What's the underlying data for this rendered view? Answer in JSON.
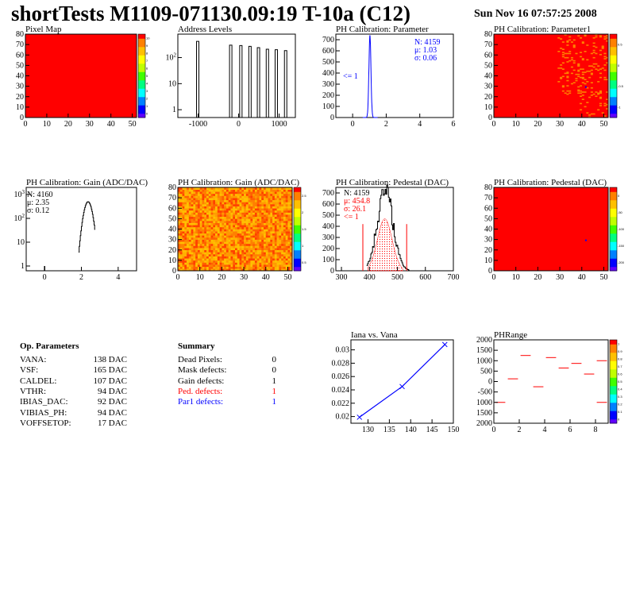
{
  "header": {
    "title": "shortTests M1109-071130.09:19 T-10a (C12)",
    "date": "Sun Nov 16 07:57:25 2008"
  },
  "colors": {
    "red": "#ff0000",
    "blue": "#0000ff",
    "black": "#000000",
    "palette": [
      "#6000ff",
      "#0000ff",
      "#0080ff",
      "#00ffff",
      "#00ff80",
      "#40ff00",
      "#c0ff00",
      "#ffff00",
      "#ffc000",
      "#ff8000",
      "#ff0000"
    ]
  },
  "chart_data": [
    {
      "id": "pixel-map",
      "type": "heatmap",
      "title": "Pixel Map",
      "xlim": [
        0,
        52
      ],
      "ylim": [
        0,
        80
      ],
      "xticks": [
        "0",
        "10",
        "20",
        "30",
        "40",
        "50"
      ],
      "yticks": [
        "0",
        "10",
        "20",
        "30",
        "40",
        "50",
        "60",
        "70",
        "80"
      ],
      "fill": "uniform",
      "z_ticks": [
        "0",
        "1",
        "2",
        "3",
        "4",
        "5",
        "6",
        "7",
        "8",
        "9",
        "10"
      ]
    },
    {
      "id": "address-levels",
      "type": "bar",
      "title": "Address Levels",
      "xlim": [
        -1500,
        1400
      ],
      "ylog": true,
      "xticks": [
        "-1000",
        "0",
        "1000"
      ],
      "yticks": [
        "1",
        "10",
        "10^2"
      ],
      "peaks": [
        {
          "x": -1010,
          "count": 420
        },
        {
          "x": -195,
          "count": 300
        },
        {
          "x": 55,
          "count": 290
        },
        {
          "x": 280,
          "count": 270
        },
        {
          "x": 490,
          "count": 240
        },
        {
          "x": 710,
          "count": 210
        },
        {
          "x": 930,
          "count": 200
        },
        {
          "x": 1160,
          "count": 185
        }
      ]
    },
    {
      "id": "ph-param",
      "type": "line",
      "title": "PH Calibration: Parameter",
      "xlim": [
        -1,
        6
      ],
      "ylim": [
        0,
        750
      ],
      "xticks": [
        "0",
        "2",
        "4",
        "6"
      ],
      "yticks": [
        "0",
        "100",
        "200",
        "300",
        "400",
        "500",
        "600",
        "700"
      ],
      "stats": [
        "N: 4159",
        "μ: 1.03",
        "σ: 0.06"
      ],
      "annotation": "<= 1",
      "peak_center": 1.03,
      "peak_sigma": 0.06,
      "peak_height": 740
    },
    {
      "id": "ph-param1",
      "type": "heatmap",
      "title": "PH Calibration: Parameter1",
      "xlim": [
        0,
        52
      ],
      "ylim": [
        0,
        80
      ],
      "xticks": [
        "0",
        "10",
        "20",
        "30",
        "40",
        "50"
      ],
      "yticks": [
        "0",
        "10",
        "20",
        "30",
        "40",
        "50",
        "60",
        "70",
        "80"
      ],
      "z_ticks": [
        "-1",
        "-0.5",
        "0",
        "0.5"
      ]
    },
    {
      "id": "ph-gain-hist",
      "type": "line",
      "title": "PH Calibration: Gain (ADC/DAC)",
      "xlim": [
        -1,
        5
      ],
      "ylog": true,
      "xticks": [
        "0",
        "2",
        "4"
      ],
      "yticks": [
        "1",
        "10",
        "10^2",
        "10^3"
      ],
      "stats": [
        "N: 4160",
        "μ: 2.35",
        "σ: 0.12"
      ],
      "peak_center": 2.35,
      "peak_sigma": 0.12,
      "peak_height": 500
    },
    {
      "id": "ph-gain-map",
      "type": "heatmap",
      "title": "PH Calibration: Gain (ADC/DAC)",
      "xlim": [
        0,
        52
      ],
      "ylim": [
        0,
        80
      ],
      "xticks": [
        "0",
        "10",
        "20",
        "30",
        "40",
        "50"
      ],
      "yticks": [
        "0",
        "10",
        "20",
        "30",
        "40",
        "50",
        "60",
        "70",
        "80"
      ],
      "z_ticks": [
        "0.5",
        "1",
        "1.5",
        "2",
        "2.5"
      ]
    },
    {
      "id": "ph-pedestal-hist",
      "type": "line",
      "title": "PH Calibration: Pedestal (DAC)",
      "xlim": [
        280,
        700
      ],
      "ylim": [
        0,
        750
      ],
      "xticks": [
        "300",
        "400",
        "500",
        "600",
        "700"
      ],
      "yticks": [
        "0",
        "100",
        "200",
        "300",
        "400",
        "500",
        "600",
        "700"
      ],
      "stats": [
        "N: 4159",
        "μ: 454.8",
        "σ: 26.1",
        "<= 1"
      ],
      "peak_center": 454.8,
      "peak_sigma": 26.1,
      "peak_height": 720,
      "cuts": [
        376.5,
        533.1
      ]
    },
    {
      "id": "ph-pedestal-map",
      "type": "heatmap",
      "title": "PH Calibration: Pedestal (DAC)",
      "xlim": [
        0,
        52
      ],
      "ylim": [
        0,
        80
      ],
      "xticks": [
        "0",
        "10",
        "20",
        "30",
        "40",
        "50"
      ],
      "yticks": [
        "0",
        "10",
        "20",
        "30",
        "40",
        "50",
        "60",
        "70",
        "80"
      ],
      "z_ticks": [
        "-200",
        "-150",
        "-100",
        "-50",
        "0"
      ]
    },
    {
      "id": "iana-vana",
      "type": "line",
      "title": "Iana vs. Vana",
      "xlim": [
        126,
        150
      ],
      "ylim": [
        0.019,
        0.0315
      ],
      "xticks": [
        "130",
        "135",
        "140",
        "145",
        "150"
      ],
      "yticks": [
        "0.02",
        "0.022",
        "0.024",
        "0.026",
        "0.028",
        "0.03"
      ],
      "x": [
        128,
        138,
        148
      ],
      "y": [
        0.0199,
        0.0245,
        0.0308
      ]
    },
    {
      "id": "ph-range",
      "type": "scatter",
      "title": "PHRange",
      "xlim": [
        0,
        9
      ],
      "ylim": [
        -2000,
        2000
      ],
      "xticks": [
        "0",
        "2",
        "4",
        "6",
        "8"
      ],
      "yticks": [
        "2000",
        "1500",
        "1000",
        "500",
        "0",
        "-500",
        "1000",
        "1500",
        "2000"
      ],
      "x": [
        0.5,
        1.5,
        2.5,
        3.5,
        4.5,
        5.5,
        6.5,
        7.5,
        8.5
      ],
      "y": [
        -1000,
        130,
        1250,
        -250,
        1150,
        650,
        870,
        360,
        -1000
      ],
      "extra": [
        {
          "x": 8.5,
          "y": 1000
        }
      ],
      "z_ticks": [
        "0",
        "0.1",
        "0.2",
        "0.3",
        "0.4",
        "0.5",
        "0.6",
        "0.7",
        "0.8",
        "0.9",
        "1"
      ]
    }
  ],
  "op_params": {
    "title": "Op. Parameters",
    "rows": [
      {
        "name": "VANA:",
        "value": "138 DAC"
      },
      {
        "name": "VSF:",
        "value": "165 DAC"
      },
      {
        "name": "CALDEL:",
        "value": "107 DAC"
      },
      {
        "name": "VTHR:",
        "value": "94 DAC"
      },
      {
        "name": "IBIAS_DAC:",
        "value": "92 DAC"
      },
      {
        "name": "VIBIAS_PH:",
        "value": "94 DAC"
      },
      {
        "name": "VOFFSETOP:",
        "value": "17 DAC"
      }
    ]
  },
  "summary": {
    "title": "Summary",
    "rows": [
      {
        "name": "Dead Pixels:",
        "value": "0",
        "color": "#000000"
      },
      {
        "name": "Mask defects:",
        "value": "0",
        "color": "#000000"
      },
      {
        "name": "Gain defects:",
        "value": "1",
        "color": "#000000"
      },
      {
        "name": "Ped. defects:",
        "value": "1",
        "color": "#ff0000"
      },
      {
        "name": "Par1 defects:",
        "value": "1",
        "color": "#0000ff"
      }
    ]
  }
}
